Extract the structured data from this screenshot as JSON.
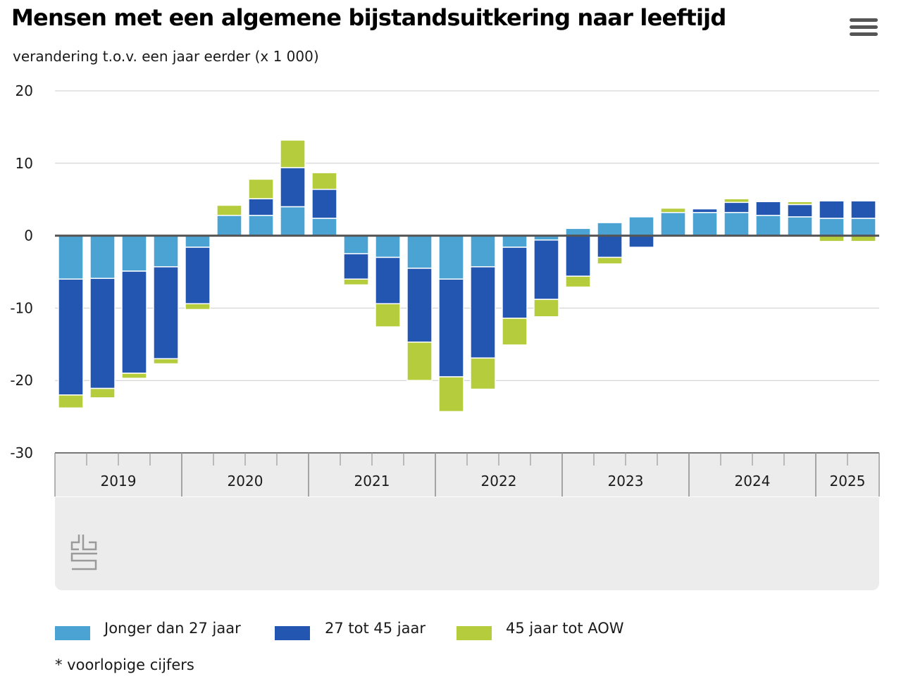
{
  "header": {
    "title": "Mensen met een algemene bijstandsuitkering naar leeftijd",
    "subtitle": "verandering t.o.v. een jaar eerder (x 1 000)",
    "menu_icon": "hamburger-menu-icon"
  },
  "colors": {
    "jonger": "#4ba3d3",
    "midden": "#2356b1",
    "ouder": "#b5cc3d",
    "grid": "#cccccc",
    "zero_line": "#555555",
    "axis_band": "#ececec"
  },
  "legend": [
    {
      "name": "Jonger dan 27 jaar",
      "color": "#4ba3d3"
    },
    {
      "name": "27 tot 45 jaar",
      "color": "#2356b1"
    },
    {
      "name": "45 jaar tot AOW",
      "color": "#b5cc3d"
    }
  ],
  "footnote": "* voorlopige cijfers",
  "logo": "cbs-logo-icon",
  "chart_data": {
    "type": "bar",
    "stacked": true,
    "ylim": [
      -30,
      20
    ],
    "yticks": [
      20,
      10,
      0,
      -10,
      -20,
      -30
    ],
    "grid": true,
    "legend_position": "bottom",
    "year_groups": [
      {
        "label": "2019",
        "quarters": 4
      },
      {
        "label": "2020",
        "quarters": 4
      },
      {
        "label": "2021",
        "quarters": 4
      },
      {
        "label": "2022",
        "quarters": 4
      },
      {
        "label": "2023",
        "quarters": 4
      },
      {
        "label": "2024",
        "quarters": 4
      },
      {
        "label": "2025",
        "quarters": 2
      }
    ],
    "categories": [
      "2019 Q1",
      "2019 Q2",
      "2019 Q3",
      "2019 Q4",
      "2020 Q1",
      "2020 Q2",
      "2020 Q3",
      "2020 Q4",
      "2021 Q1",
      "2021 Q2",
      "2021 Q3",
      "2021 Q4",
      "2022 Q1",
      "2022 Q2",
      "2022 Q3",
      "2022 Q4",
      "2023 Q1",
      "2023 Q2",
      "2023 Q3",
      "2023 Q4",
      "2024 Q1",
      "2024 Q2",
      "2024 Q3",
      "2024 Q4",
      "2025 Q1",
      "2025 Q2"
    ],
    "series": [
      {
        "name": "Jonger dan 27 jaar",
        "values": [
          -6.0,
          -5.9,
          -4.9,
          -4.3,
          -1.6,
          2.8,
          2.8,
          4.0,
          2.4,
          -2.5,
          -3.0,
          -4.5,
          -6.0,
          -4.3,
          -1.6,
          -0.6,
          1.0,
          1.8,
          2.6,
          3.2,
          3.2,
          3.2,
          2.8,
          2.6,
          2.4,
          2.4
        ]
      },
      {
        "name": "27 tot 45 jaar",
        "values": [
          -16.0,
          -15.2,
          -14.1,
          -12.7,
          -7.8,
          0.0,
          2.3,
          5.4,
          4.0,
          -3.5,
          -6.4,
          -10.2,
          -13.5,
          -12.6,
          -9.8,
          -8.2,
          -5.6,
          -3.0,
          -1.6,
          0.0,
          0.5,
          1.4,
          1.9,
          1.7,
          2.4,
          2.4
        ]
      },
      {
        "name": "45 jaar tot AOW",
        "values": [
          -1.8,
          -1.3,
          -0.7,
          -0.7,
          -0.8,
          1.4,
          2.7,
          3.8,
          2.3,
          -0.8,
          -3.2,
          -5.3,
          -4.8,
          -4.3,
          -3.7,
          -2.4,
          -1.5,
          -0.9,
          0.0,
          0.6,
          0.0,
          0.5,
          0.0,
          0.4,
          -0.8,
          -0.8
        ]
      }
    ]
  }
}
